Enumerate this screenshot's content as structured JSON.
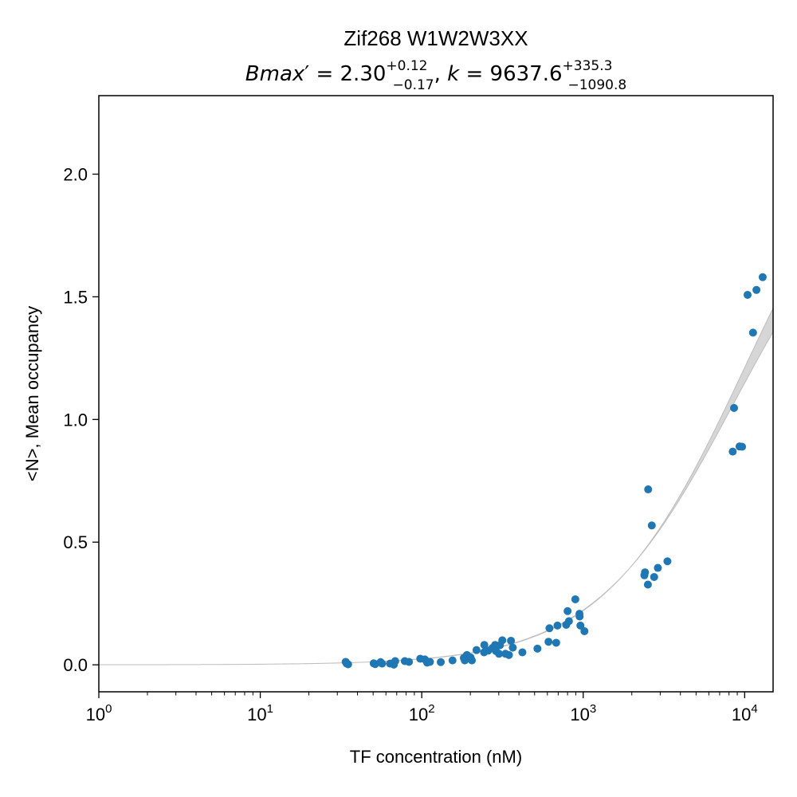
{
  "chart_data": {
    "type": "scatter",
    "title": "Zif268 W1W2W3XX",
    "subtitle": {
      "bmax_label": "Bmax",
      "bmax_prime": "′",
      "bmax_value": "2.30",
      "bmax_upper": "+0.12",
      "bmax_lower": "−0.17",
      "k_label": "k",
      "k_value": "9637.6",
      "k_upper": "+335.3",
      "k_lower": "−1090.8"
    },
    "xlabel": "TF concentration (nM)",
    "ylabel": "<N>, Mean occupancy",
    "x_scale": "log",
    "xlim": [
      1,
      15000
    ],
    "ylim": [
      -0.11,
      2.32
    ],
    "x_ticks": [
      {
        "value": 1,
        "base": "10",
        "exp": "0"
      },
      {
        "value": 10,
        "base": "10",
        "exp": "1"
      },
      {
        "value": 100,
        "base": "10",
        "exp": "2"
      },
      {
        "value": 1000,
        "base": "10",
        "exp": "3"
      },
      {
        "value": 10000,
        "base": "10",
        "exp": "4"
      }
    ],
    "y_ticks": [
      {
        "value": 0.0,
        "label": "0.0"
      },
      {
        "value": 0.5,
        "label": "0.5"
      },
      {
        "value": 1.0,
        "label": "1.0"
      },
      {
        "value": 1.5,
        "label": "1.5"
      },
      {
        "value": 2.0,
        "label": "2.0"
      }
    ],
    "grid": false,
    "fit": {
      "bmax": 2.3,
      "k": 9637.6,
      "bmax_band": [
        2.13,
        2.42
      ],
      "k_band": [
        8546.8,
        9972.9
      ]
    },
    "colors": {
      "points": "#1f77b4",
      "band": "#d6d6d6",
      "band_edge": "#bdbdbd"
    },
    "points": [
      [
        33.8,
        0.012
      ],
      [
        34.3,
        0.005
      ],
      [
        35.0,
        0.002
      ],
      [
        50.4,
        0.006
      ],
      [
        51.5,
        0.003
      ],
      [
        55.6,
        0.011
      ],
      [
        56.8,
        0.005
      ],
      [
        63.6,
        0.005
      ],
      [
        66.6,
        0.007
      ],
      [
        68.5,
        0.015
      ],
      [
        67.2,
        0.001
      ],
      [
        78.5,
        0.015
      ],
      [
        83.3,
        0.012
      ],
      [
        97.9,
        0.025
      ],
      [
        104.6,
        0.022
      ],
      [
        108.0,
        0.009
      ],
      [
        112.4,
        0.012
      ],
      [
        131.2,
        0.011
      ],
      [
        155.1,
        0.018
      ],
      [
        182.3,
        0.028
      ],
      [
        184.8,
        0.018
      ],
      [
        190.4,
        0.04
      ],
      [
        200.6,
        0.03
      ],
      [
        204.4,
        0.018
      ],
      [
        218.4,
        0.06
      ],
      [
        244.1,
        0.081
      ],
      [
        243.3,
        0.051
      ],
      [
        258.3,
        0.058
      ],
      [
        274.6,
        0.069
      ],
      [
        284.7,
        0.081
      ],
      [
        288.1,
        0.056
      ],
      [
        300.9,
        0.045
      ],
      [
        305.2,
        0.08
      ],
      [
        315.5,
        0.1
      ],
      [
        330.1,
        0.045
      ],
      [
        346.6,
        0.04
      ],
      [
        357.0,
        0.098
      ],
      [
        366.3,
        0.07
      ],
      [
        420.1,
        0.051
      ],
      [
        520.8,
        0.066
      ],
      [
        609.6,
        0.094
      ],
      [
        617.9,
        0.149
      ],
      [
        680.1,
        0.09
      ],
      [
        692.8,
        0.16
      ],
      [
        784.8,
        0.163
      ],
      [
        800.3,
        0.219
      ],
      [
        815.7,
        0.178
      ],
      [
        893.8,
        0.267
      ],
      [
        948.1,
        0.208
      ],
      [
        950.2,
        0.197
      ],
      [
        961.1,
        0.16
      ],
      [
        1017.6,
        0.137
      ],
      [
        2392.5,
        0.365
      ],
      [
        2414.6,
        0.377
      ],
      [
        2515.8,
        0.327
      ],
      [
        2525.8,
        0.715
      ],
      [
        2659.1,
        0.568
      ],
      [
        2750.2,
        0.358
      ],
      [
        2900.0,
        0.395
      ],
      [
        3324.1,
        0.422
      ],
      [
        8434.5,
        0.869
      ],
      [
        8596.1,
        1.047
      ],
      [
        9294.4,
        0.89
      ],
      [
        9636.0,
        0.889
      ],
      [
        10425.1,
        1.508
      ],
      [
        11265.5,
        1.354
      ],
      [
        11830.6,
        1.528
      ],
      [
        12928.0,
        1.58
      ]
    ]
  }
}
